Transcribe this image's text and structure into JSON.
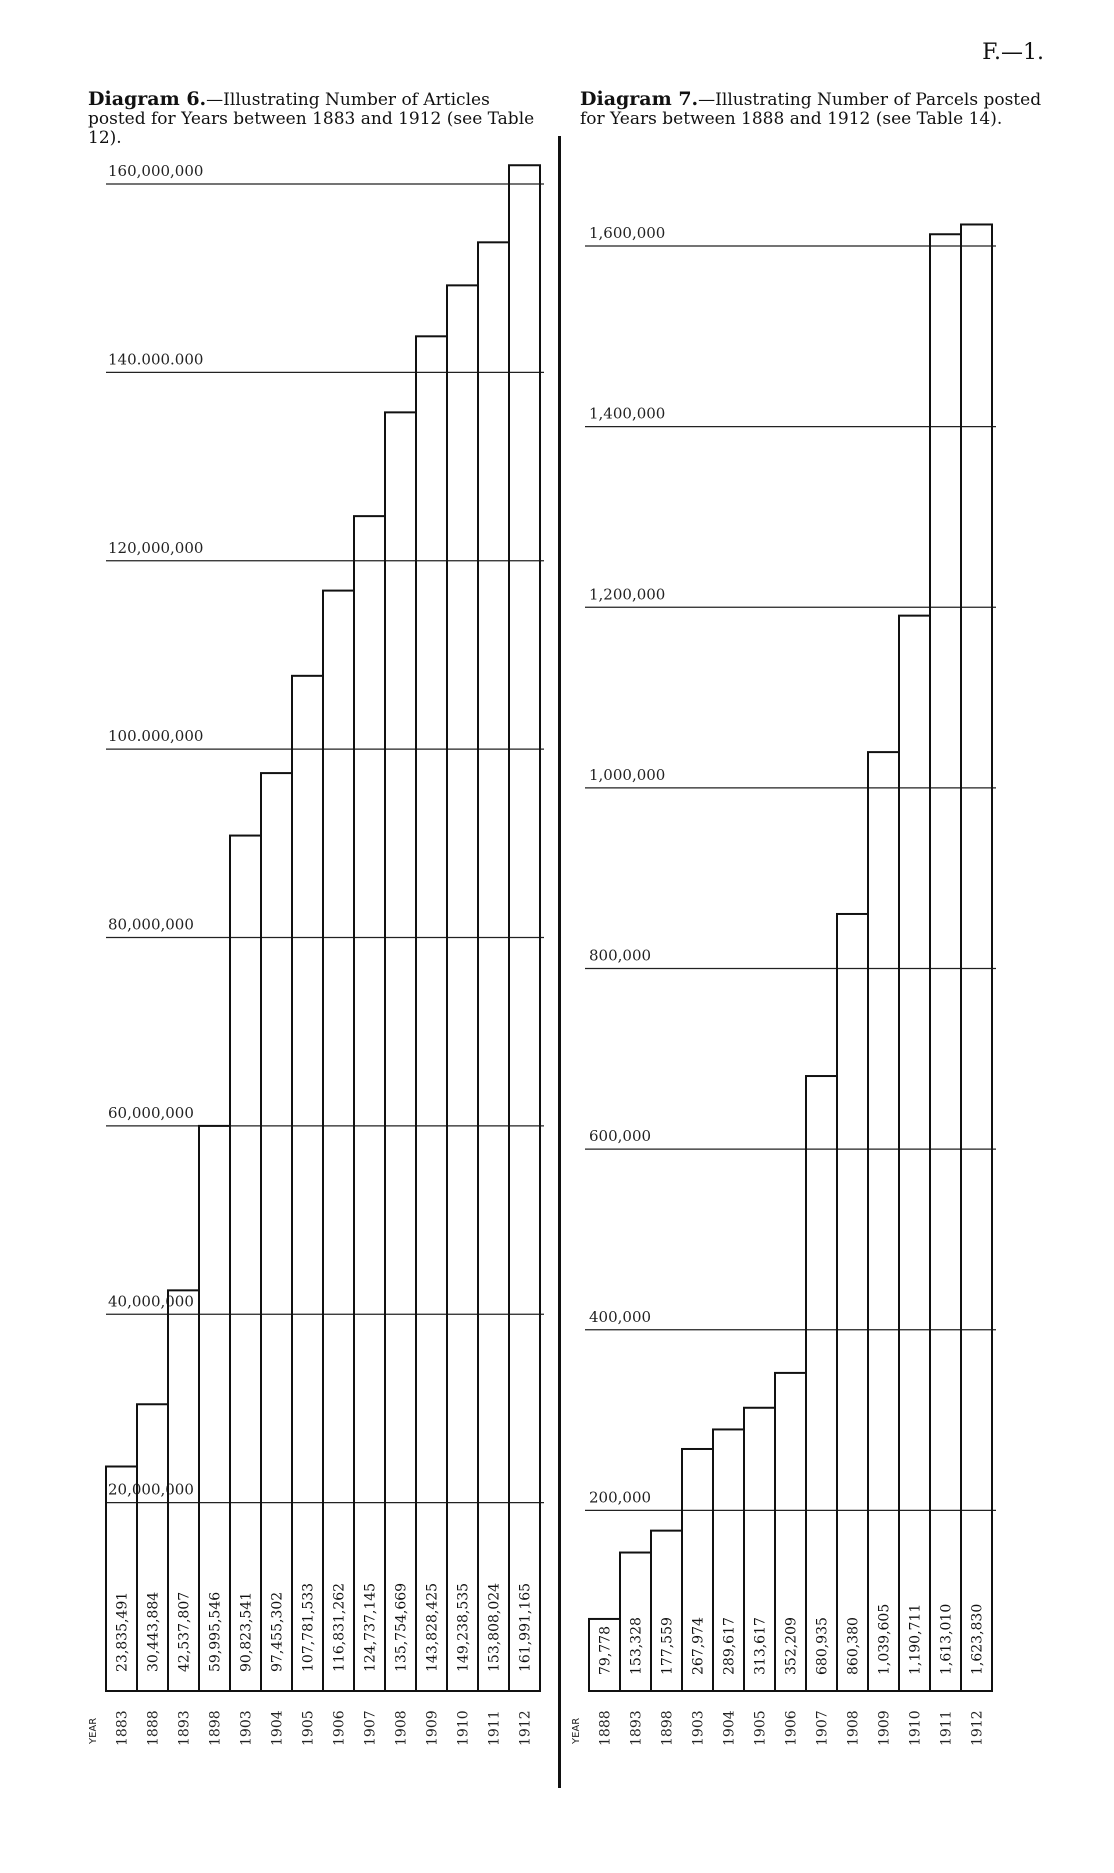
{
  "page_number": "F.—1.",
  "chart_data": [
    {
      "type": "bar",
      "title": "Diagram 6.",
      "subtitle": "—Illustrating Number of Articles posted for Years between 1883 and 1912 (see Table 12).",
      "xlabel": "YEAR",
      "ylabel": "",
      "ylim": [
        0,
        160000000
      ],
      "ticks": [
        {
          "value": 20000000,
          "label": "20,000,000"
        },
        {
          "value": 40000000,
          "label": "40,000,000"
        },
        {
          "value": 60000000,
          "label": "60,000,000"
        },
        {
          "value": 80000000,
          "label": "80,000,000"
        },
        {
          "value": 100000000,
          "label": "100.000,000"
        },
        {
          "value": 120000000,
          "label": "120,000,000"
        },
        {
          "value": 140000000,
          "label": "140.000.000"
        },
        {
          "value": 160000000,
          "label": "160,000,000"
        }
      ],
      "categories": [
        "1883",
        "1888",
        "1893",
        "1898",
        "1903",
        "1904",
        "1905",
        "1906",
        "1907",
        "1908",
        "1909",
        "1910",
        "1911",
        "1912"
      ],
      "values": [
        23835491,
        30443884,
        42537807,
        59995546,
        90823541,
        97455302,
        107781533,
        116831262,
        124737145,
        135754669,
        143828425,
        149238535,
        153808024,
        161991165
      ],
      "value_labels": [
        "23,835,491",
        "30,443,884",
        "42,537,807",
        "59,995,546",
        "90,823,541",
        "97,455,302",
        "107,781,533",
        "116,831,262",
        "124,737,145",
        "135,754,669",
        "143,828,425",
        "149,238,535",
        "153,808,024",
        "161,991,165"
      ],
      "grid": true
    },
    {
      "type": "bar",
      "title": "Diagram 7.",
      "subtitle": "—Illustrating Number of Parcels posted for Years between 1888 and 1912 (see Table 14).",
      "xlabel": "YEAR",
      "ylabel": "",
      "ylim": [
        0,
        1600000
      ],
      "ticks": [
        {
          "value": 200000,
          "label": "200,000"
        },
        {
          "value": 400000,
          "label": "400,000"
        },
        {
          "value": 600000,
          "label": "600,000"
        },
        {
          "value": 800000,
          "label": "800,000"
        },
        {
          "value": 1000000,
          "label": "1,000,000"
        },
        {
          "value": 1200000,
          "label": "1,200,000"
        },
        {
          "value": 1400000,
          "label": "1,400,000"
        },
        {
          "value": 1600000,
          "label": "1,600,000"
        }
      ],
      "categories": [
        "1888",
        "1893",
        "1898",
        "1903",
        "1904",
        "1905",
        "1906",
        "1907",
        "1908",
        "1909",
        "1910",
        "1911",
        "1912"
      ],
      "values": [
        79778,
        153328,
        177559,
        267974,
        289617,
        313617,
        352209,
        680935,
        860380,
        1039605,
        1190711,
        1613010,
        1623830
      ],
      "value_labels": [
        "79,778",
        "153,328",
        "177,559",
        "267,974",
        "289,617",
        "313,617",
        "352,209",
        "680,935",
        "860,380",
        "1,039,605",
        "1,190,711",
        "1,613,010",
        "1,623,830"
      ],
      "grid": true
    }
  ]
}
